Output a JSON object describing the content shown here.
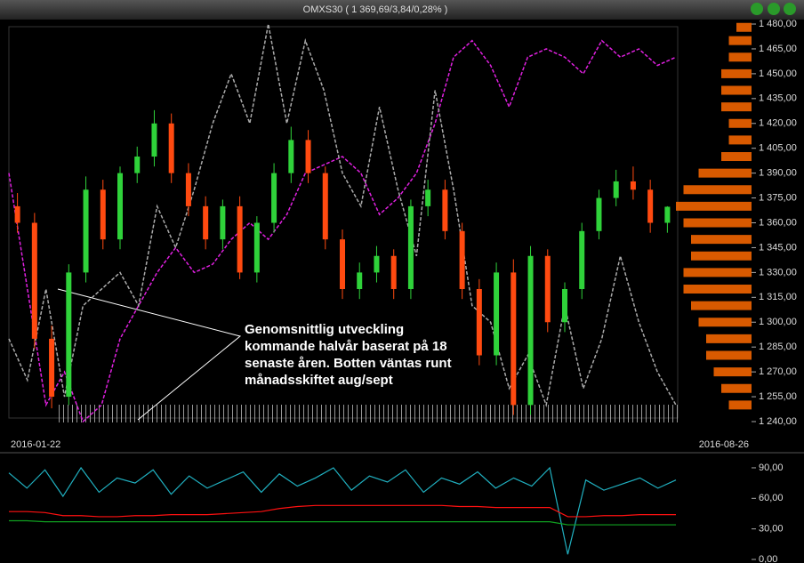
{
  "chart_data": [
    {
      "type": "candlestick",
      "title": "OMXS30 ( 1 369,69/3,84/0,28% )",
      "x_start_label": "2016-01-22",
      "x_end_label": "2016-08-26",
      "annotation": [
        "Genomsnittlig utveckling",
        "kommande halvår baserat på 18",
        "senaste åren. Botten väntas runt",
        "månadsskiftet aug/sept"
      ],
      "ylim": [
        1235.7,
        1482.7
      ],
      "yticks": [
        {
          "value": 1240,
          "label": "1 240,00"
        },
        {
          "value": 1255,
          "label": "1 255,00"
        },
        {
          "value": 1270,
          "label": "1 270,00"
        },
        {
          "value": 1285,
          "label": "1 285,00"
        },
        {
          "value": 1300,
          "label": "1 300,00"
        },
        {
          "value": 1315,
          "label": "1 315,00"
        },
        {
          "value": 1330,
          "label": "1 330,00"
        },
        {
          "value": 1345,
          "label": "1 345,00"
        },
        {
          "value": 1360,
          "label": "1 360,00"
        },
        {
          "value": 1375,
          "label": "1 375,00"
        },
        {
          "value": 1390,
          "label": "1 390,00"
        },
        {
          "value": 1405,
          "label": "1 405,00"
        },
        {
          "value": 1420,
          "label": "1 420,00"
        },
        {
          "value": 1435,
          "label": "1 435,00"
        },
        {
          "value": 1450,
          "label": "1 450,00"
        },
        {
          "value": 1465,
          "label": "1 465,00"
        },
        {
          "value": 1480,
          "label": "1 480,00"
        }
      ],
      "up_color": "#2fd23a",
      "down_color": "#ff4a10",
      "open": [
        1370,
        1360,
        1290,
        1255,
        1330,
        1380,
        1350,
        1390,
        1400,
        1420,
        1390,
        1370,
        1350,
        1370,
        1330,
        1360,
        1390,
        1410,
        1390,
        1350,
        1320,
        1330,
        1340,
        1320,
        1370,
        1380,
        1355,
        1320,
        1280,
        1330,
        1250,
        1340,
        1300,
        1320,
        1355,
        1375,
        1385,
        1380,
        1360
      ],
      "high": [
        1378,
        1366,
        1298,
        1335,
        1388,
        1386,
        1394,
        1406,
        1428,
        1426,
        1396,
        1376,
        1374,
        1376,
        1364,
        1396,
        1418,
        1416,
        1394,
        1356,
        1336,
        1346,
        1344,
        1374,
        1386,
        1386,
        1360,
        1326,
        1336,
        1338,
        1346,
        1344,
        1324,
        1360,
        1380,
        1392,
        1394,
        1386,
        1370
      ],
      "low": [
        1354,
        1284,
        1248,
        1250,
        1324,
        1344,
        1344,
        1384,
        1394,
        1384,
        1364,
        1344,
        1344,
        1326,
        1324,
        1354,
        1384,
        1384,
        1344,
        1314,
        1314,
        1324,
        1314,
        1314,
        1364,
        1350,
        1314,
        1274,
        1274,
        1244,
        1244,
        1294,
        1294,
        1314,
        1350,
        1370,
        1374,
        1354,
        1354
      ],
      "close": [
        1360,
        1290,
        1255,
        1330,
        1380,
        1350,
        1390,
        1400,
        1420,
        1390,
        1370,
        1350,
        1370,
        1330,
        1360,
        1390,
        1410,
        1390,
        1350,
        1320,
        1330,
        1340,
        1320,
        1370,
        1380,
        1355,
        1320,
        1280,
        1330,
        1250,
        1340,
        1300,
        1320,
        1355,
        1375,
        1385,
        1380,
        1360,
        1369.69
      ],
      "series": [
        {
          "color": "#e020e0",
          "values": [
            1390,
            1320,
            1250,
            1270,
            1240,
            1250,
            1290,
            1310,
            1330,
            1345,
            1330,
            1335,
            1350,
            1360,
            1350,
            1365,
            1390,
            1395,
            1400,
            1390,
            1365,
            1375,
            1390,
            1420,
            1460,
            1470,
            1455,
            1430,
            1460,
            1465,
            1460,
            1450,
            1470,
            1460,
            1465,
            1455,
            1460
          ]
        },
        {
          "color": "#aaaaaa",
          "values": [
            1290,
            1265,
            1320,
            1255,
            1310,
            1320,
            1330,
            1310,
            1370,
            1345,
            1380,
            1420,
            1450,
            1420,
            1480,
            1420,
            1470,
            1440,
            1390,
            1370,
            1430,
            1380,
            1340,
            1440,
            1380,
            1310,
            1300,
            1260,
            1280,
            1250,
            1310,
            1260,
            1290,
            1340,
            1300,
            1270,
            1250
          ]
        }
      ],
      "profile_color": "#ff6a00",
      "profile_levels": [
        1250,
        1260,
        1270,
        1280,
        1290,
        1300,
        1310,
        1320,
        1330,
        1340,
        1350,
        1360,
        1370,
        1380,
        1390,
        1400,
        1410,
        1420,
        1430,
        1440,
        1450,
        1460,
        1470,
        1478
      ],
      "profile_values": [
        3,
        4,
        5,
        6,
        6,
        7,
        8,
        9,
        9,
        8,
        8,
        9,
        10,
        9,
        7,
        4,
        3,
        3,
        4,
        4,
        4,
        3,
        3,
        2
      ]
    },
    {
      "type": "line",
      "ylim": [
        -3.5,
        102.2
      ],
      "yticks": [
        {
          "value": 0,
          "label": "0,00"
        },
        {
          "value": 30,
          "label": "30,00"
        },
        {
          "value": 60,
          "label": "60,00"
        },
        {
          "value": 90,
          "label": "90,00"
        }
      ],
      "series": [
        {
          "color": "#20b0c0",
          "values": [
            85,
            70,
            88,
            62,
            90,
            66,
            80,
            75,
            88,
            64,
            82,
            70,
            78,
            86,
            66,
            84,
            72,
            80,
            90,
            68,
            82,
            76,
            88,
            66,
            80,
            74,
            86,
            70,
            80,
            72,
            90,
            5,
            78,
            68,
            74,
            80,
            70,
            78
          ]
        },
        {
          "color": "#ff1010",
          "values": [
            47,
            47,
            46,
            43,
            43,
            42,
            42,
            43,
            43,
            44,
            44,
            44,
            45,
            46,
            47,
            50,
            52,
            53,
            53,
            53,
            53,
            53,
            53,
            53,
            53,
            52,
            52,
            51,
            51,
            51,
            51,
            42,
            42,
            43,
            43,
            44,
            44,
            44
          ]
        },
        {
          "color": "#10a020",
          "values": [
            38,
            38,
            37,
            37,
            37,
            37,
            37,
            37,
            37,
            37,
            37,
            37,
            37,
            37,
            37,
            37,
            37,
            37,
            37,
            37,
            37,
            37,
            37,
            37,
            37,
            37,
            37,
            37,
            37,
            37,
            37,
            34,
            34,
            34,
            34,
            34,
            34,
            34
          ]
        }
      ]
    }
  ]
}
